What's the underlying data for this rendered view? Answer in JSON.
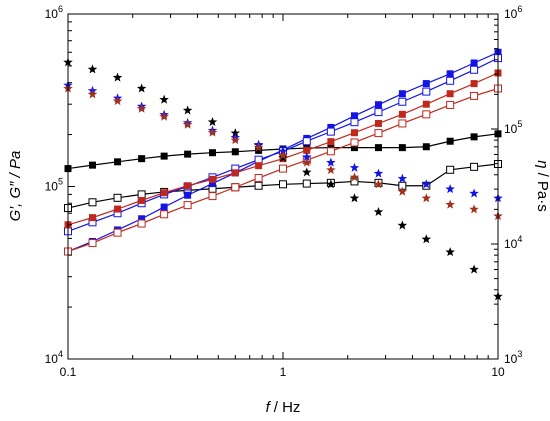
{
  "chart_data": {
    "type": "scatter",
    "xlabel_var": "f",
    "xlabel_unit": "/ Hz",
    "ylabel_left": "G′, G″ / Pa",
    "ylabel_right_var": "η",
    "ylabel_right_unit": "/ Pa·s",
    "x_scale": "log",
    "y_left_scale": "log",
    "y_right_scale": "log",
    "xlim": [
      0.1,
      10
    ],
    "ylim_left": [
      10000,
      1000000
    ],
    "ylim_right": [
      1000,
      1000000
    ],
    "x_ticks": [
      {
        "value": 0.1,
        "label": "0.1"
      },
      {
        "value": 1,
        "label": "1"
      },
      {
        "value": 10,
        "label": "10"
      }
    ],
    "y_left_ticks": [
      {
        "value": 10000,
        "base": "10",
        "exp": "4"
      },
      {
        "value": 100000,
        "base": "10",
        "exp": "5"
      },
      {
        "value": 1000000,
        "base": "10",
        "exp": "6"
      }
    ],
    "y_right_ticks": [
      {
        "value": 1000,
        "base": "10",
        "exp": "3"
      },
      {
        "value": 10000,
        "base": "10",
        "exp": "4"
      },
      {
        "value": 100000,
        "base": "10",
        "exp": "5"
      },
      {
        "value": 1000000,
        "base": "10",
        "exp": "6"
      }
    ],
    "x": [
      0.1,
      0.13,
      0.17,
      0.22,
      0.28,
      0.36,
      0.47,
      0.6,
      0.77,
      1.0,
      1.29,
      1.67,
      2.15,
      2.78,
      3.59,
      4.64,
      5.99,
      7.74,
      10.0
    ],
    "series": [
      {
        "axis": "left",
        "marker": "square",
        "fill": "filled",
        "color": "#000000",
        "line": true,
        "values": [
          127000,
          133000,
          139000,
          145000,
          150000,
          154000,
          157000,
          159000,
          162000,
          165000,
          167000,
          168000,
          168000,
          168000,
          168000,
          170000,
          183000,
          194000,
          202000
        ]
      },
      {
        "axis": "left",
        "marker": "square",
        "fill": "open",
        "color": "#000000",
        "line": true,
        "values": [
          75000,
          81000,
          86000,
          90000,
          93000,
          95000,
          97000,
          99000,
          101000,
          103000,
          104000,
          105000,
          107000,
          105000,
          101000,
          101000,
          125000,
          130000,
          135000
        ]
      },
      {
        "axis": "left",
        "marker": "square",
        "fill": "filled",
        "color": "#1414e6",
        "line": true,
        "values": [
          42000,
          48000,
          56000,
          65000,
          76000,
          89000,
          104000,
          120000,
          140000,
          163000,
          190000,
          220000,
          257000,
          298000,
          345000,
          395000,
          450000,
          520000,
          600000
        ]
      },
      {
        "axis": "left",
        "marker": "square",
        "fill": "open",
        "color": "#1414e6",
        "line": true,
        "values": [
          55000,
          62000,
          70000,
          80000,
          90000,
          100000,
          113000,
          127000,
          143000,
          160000,
          183000,
          208000,
          236000,
          270000,
          310000,
          355000,
          410000,
          475000,
          555000
        ]
      },
      {
        "axis": "left",
        "marker": "square",
        "fill": "filled",
        "color": "#c0281e",
        "line": true,
        "values": [
          60000,
          66000,
          74000,
          83000,
          92000,
          101000,
          110000,
          120000,
          132000,
          145000,
          162000,
          182000,
          205000,
          232000,
          262000,
          300000,
          345000,
          395000,
          455000
        ]
      },
      {
        "axis": "left",
        "marker": "square",
        "fill": "open",
        "color": "#c0281e",
        "line": true,
        "values": [
          42000,
          47000,
          54000,
          61000,
          69000,
          78000,
          88000,
          99000,
          112000,
          127000,
          142000,
          160000,
          180000,
          204000,
          232000,
          262000,
          297000,
          335000,
          370000
        ]
      },
      {
        "axis": "right",
        "marker": "star",
        "fill": "filled",
        "color": "#000000",
        "line": false,
        "values": [
          380000,
          330000,
          280000,
          225000,
          180000,
          145000,
          115000,
          92000,
          72000,
          56000,
          42000,
          33000,
          25000,
          19000,
          14500,
          11000,
          8500,
          6000,
          3500
        ]
      },
      {
        "axis": "right",
        "marker": "star",
        "fill": "filled",
        "color": "#1414e6",
        "line": false,
        "values": [
          240000,
          215000,
          185000,
          157000,
          133000,
          113000,
          97000,
          84000,
          73000,
          64000,
          57000,
          51000,
          46000,
          41000,
          37000,
          33000,
          30000,
          27500,
          25000
        ]
      },
      {
        "axis": "right",
        "marker": "star",
        "fill": "filled",
        "color": "#a0321e",
        "line": false,
        "values": [
          225000,
          200000,
          175000,
          150000,
          128000,
          109000,
          93000,
          80000,
          69000,
          59000,
          51000,
          44000,
          38000,
          33000,
          28500,
          25000,
          22000,
          20000,
          17500
        ]
      }
    ]
  }
}
